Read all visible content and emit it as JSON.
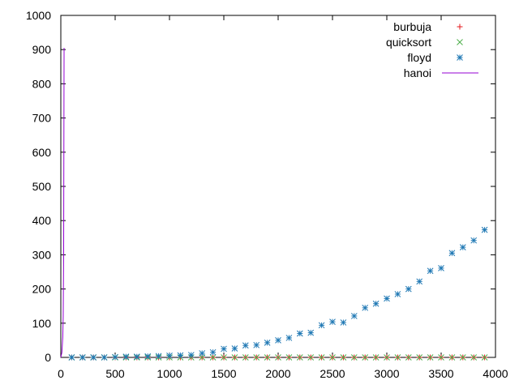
{
  "chart_data": {
    "type": "scatter",
    "xlim": [
      0,
      4000
    ],
    "ylim": [
      0,
      1000
    ],
    "x_ticks": [
      "0",
      "500",
      "1000",
      "1500",
      "2000",
      "2500",
      "3000",
      "3500",
      "4000"
    ],
    "y_ticks": [
      "0",
      "100",
      "200",
      "300",
      "400",
      "500",
      "600",
      "700",
      "800",
      "900",
      "1000"
    ],
    "grid": false,
    "legend_position": "top-right",
    "series": [
      {
        "name": "burbuja",
        "marker": "plus",
        "color": "#e41a1c",
        "x": [
          100,
          200,
          300,
          400,
          500,
          600,
          700,
          800,
          900,
          1000,
          1100,
          1200,
          1300,
          1400,
          1500,
          1600,
          1700,
          1800,
          1900,
          2000,
          2100,
          2200,
          2300,
          2400,
          2500,
          2600,
          2700,
          2800,
          2900,
          3000,
          3100,
          3200,
          3300,
          3400,
          3500,
          3600,
          3700,
          3800,
          3900
        ],
        "y": [
          0,
          0,
          0,
          0,
          0,
          0,
          0,
          0,
          0,
          0,
          0,
          0,
          0,
          0,
          0,
          0,
          0,
          0,
          0,
          0,
          0,
          0,
          0,
          0,
          0,
          0,
          0,
          0,
          0,
          0,
          0,
          0,
          0,
          0,
          0,
          0,
          0,
          0,
          0
        ]
      },
      {
        "name": "quicksort",
        "marker": "cross",
        "color": "#4daf4a",
        "x": [
          100,
          200,
          300,
          400,
          500,
          600,
          700,
          800,
          900,
          1000,
          1100,
          1200,
          1300,
          1400,
          1500,
          1600,
          1700,
          1800,
          1900,
          2000,
          2100,
          2200,
          2300,
          2400,
          2500,
          2600,
          2700,
          2800,
          2900,
          3000,
          3100,
          3200,
          3300,
          3400,
          3500,
          3600,
          3700,
          3800,
          3900
        ],
        "y": [
          0,
          0,
          0,
          0,
          0,
          0,
          0,
          0,
          0,
          0,
          0,
          0,
          0,
          0,
          0,
          0,
          0,
          0,
          0,
          0,
          0,
          0,
          0,
          0,
          0,
          0,
          0,
          0,
          0,
          0,
          0,
          0,
          0,
          0,
          0,
          0,
          0,
          0,
          0
        ]
      },
      {
        "name": "floyd",
        "marker": "star",
        "color": "#1f78b4",
        "x": [
          100,
          200,
          300,
          400,
          500,
          600,
          700,
          800,
          900,
          1000,
          1100,
          1200,
          1300,
          1400,
          1500,
          1600,
          1700,
          1800,
          1900,
          2000,
          2100,
          2200,
          2300,
          2400,
          2500,
          2600,
          2700,
          2800,
          2900,
          3000,
          3100,
          3200,
          3300,
          3400,
          3500,
          3600,
          3700,
          3800,
          3900
        ],
        "y": [
          0,
          0,
          0,
          0,
          1,
          2,
          2,
          3,
          4,
          5,
          6,
          7,
          12,
          15,
          25,
          26,
          35,
          36,
          43,
          50,
          57,
          70,
          72,
          94,
          104,
          102,
          121,
          145,
          157,
          172,
          185,
          200,
          222,
          253,
          261,
          305,
          322,
          342,
          373
        ]
      },
      {
        "name": "hanoi",
        "marker": "line",
        "color": "#9400d3",
        "x": [
          0,
          10,
          18,
          22,
          26,
          28,
          30
        ],
        "y": [
          0,
          15,
          60,
          120,
          300,
          600,
          905
        ]
      }
    ]
  }
}
